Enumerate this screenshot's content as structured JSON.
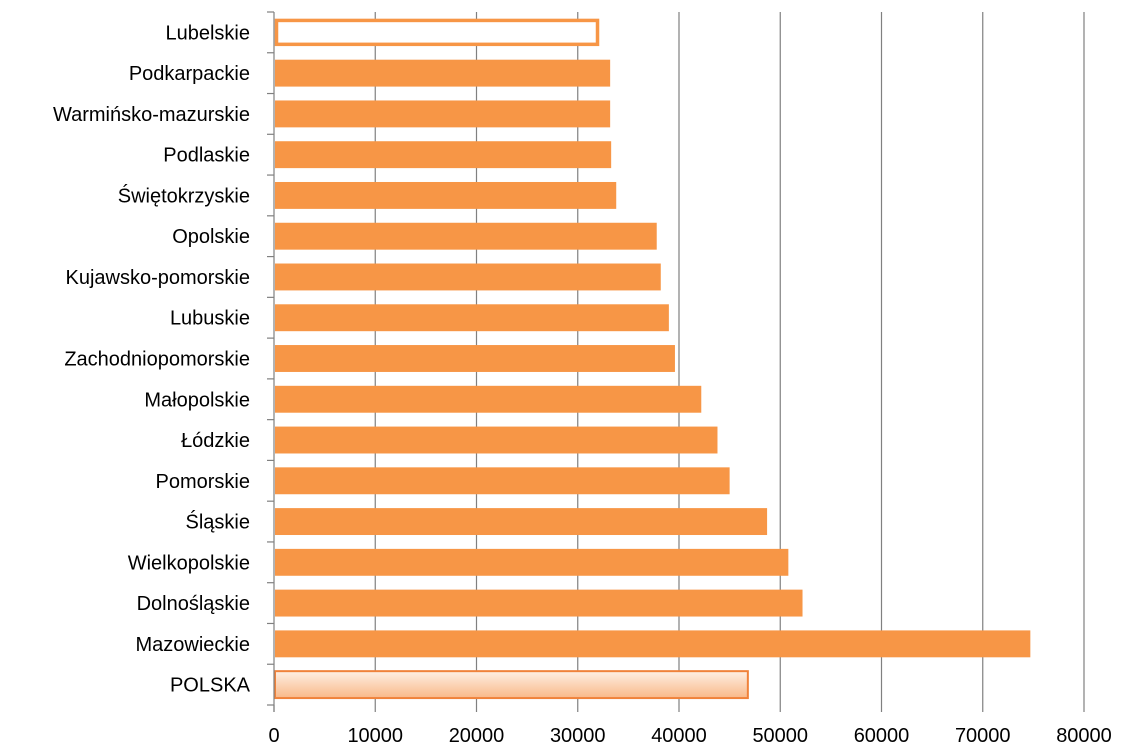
{
  "chart_data": {
    "type": "bar",
    "orientation": "horizontal",
    "categories": [
      "Lubelskie",
      "Podkarpackie",
      "Warmińsko-mazurskie",
      "Podlaskie",
      "Świętokrzyskie",
      "Opolskie",
      "Kujawsko-pomorskie",
      "Lubuskie",
      "Zachodniopomorskie",
      "Małopolskie",
      "Łódzkie",
      "Pomorskie",
      "Śląskie",
      "Wielkopolskie",
      "Dolnośląskie",
      "Mazowieckie",
      "POLSKA"
    ],
    "values": [
      32100,
      33200,
      33200,
      33300,
      33800,
      37800,
      38200,
      39000,
      39600,
      42200,
      43800,
      45000,
      48700,
      50800,
      52200,
      74700,
      46800
    ],
    "bar_styles": [
      "outline",
      "solid",
      "solid",
      "solid",
      "solid",
      "solid",
      "solid",
      "solid",
      "solid",
      "solid",
      "solid",
      "solid",
      "solid",
      "solid",
      "solid",
      "solid",
      "gradient"
    ],
    "xlim": [
      0,
      80000
    ],
    "xticks": [
      "0",
      "10000",
      "20000",
      "30000",
      "40000",
      "50000",
      "60000",
      "70000",
      "80000"
    ],
    "grid": true,
    "colors": {
      "bar": "#F79646",
      "bar_stroke": "#F0823A",
      "gradient_light": "#FEF0E4",
      "gradient_dark": "#F9B888",
      "grid": "#808080",
      "axis": "#808080"
    }
  }
}
